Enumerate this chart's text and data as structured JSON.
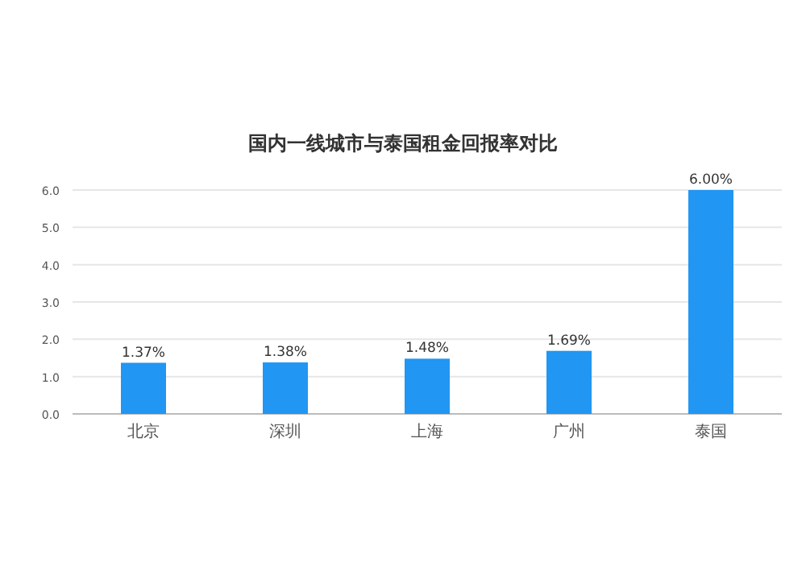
{
  "chart_data": {
    "type": "bar",
    "title": "国内一线城市与泰国租金回报率对比",
    "categories": [
      "北京",
      "深圳",
      "上海",
      "广州",
      "泰国"
    ],
    "values": [
      1.37,
      1.38,
      1.48,
      1.69,
      6.0
    ],
    "value_labels": [
      "1.37%",
      "1.38%",
      "1.48%",
      "1.69%",
      "6.00%"
    ],
    "color": "#2196f3",
    "ylim": [
      0,
      6
    ],
    "yticks": [
      {
        "value": 0,
        "label": "0.0"
      },
      {
        "value": 1,
        "label": "1.0"
      },
      {
        "value": 2,
        "label": "2.0"
      },
      {
        "value": 3,
        "label": "3.0"
      },
      {
        "value": 4,
        "label": "4.0"
      },
      {
        "value": 5,
        "label": "5.0"
      },
      {
        "value": 6,
        "label": "6.0"
      }
    ],
    "grid": "y"
  }
}
